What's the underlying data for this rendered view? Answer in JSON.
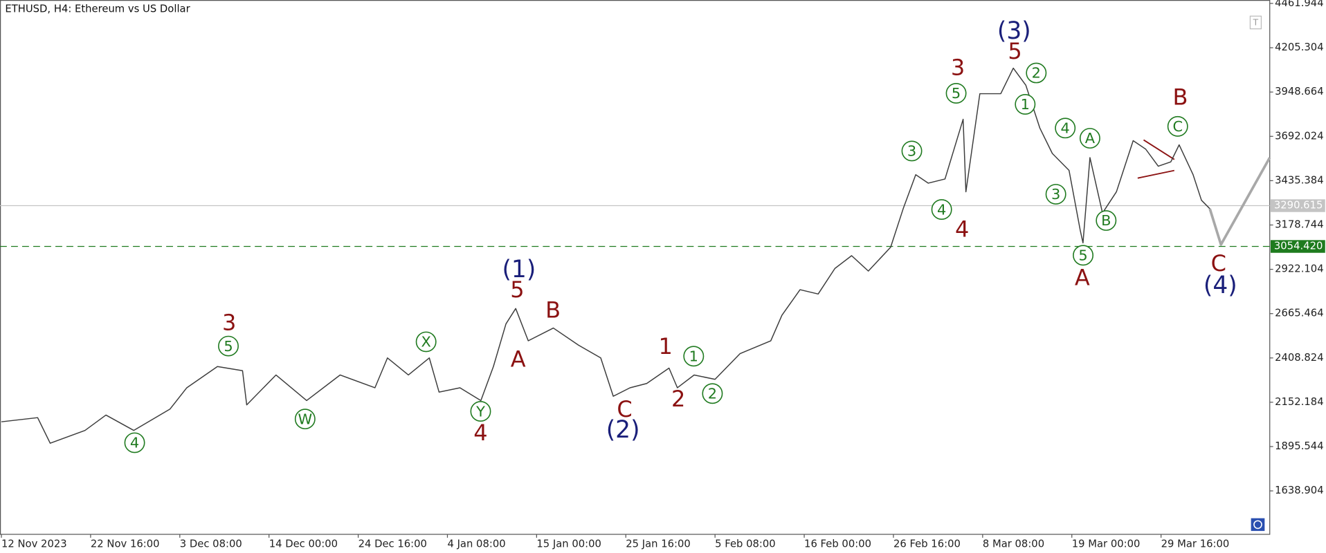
{
  "chart_data": {
    "type": "line",
    "title": "ETHUSD, H4:  Ethereum vs US Dollar",
    "x": [
      "12 Nov 00:00",
      "16 Nov 08:00",
      "17 Nov 20:00",
      "22 Nov 00:00",
      "24 Nov 12:00",
      "27 Nov 20:00",
      "2 Dec 04:00",
      "4 Dec 04:00",
      "7 Dec 20:00",
      "10 Dec 20:00",
      "11 Dec 08:00",
      "14 Dec 20:00",
      "18 Dec 12:00",
      "22 Dec 12:00",
      "26 Dec 16:00",
      "28 Dec 04:00",
      "30 Dec 16:00",
      "2 Jan 04:00",
      "3 Jan 08:00",
      "5 Jan 20:00",
      "8 Jan 08:00",
      "9 Jan 20:00",
      "11 Jan 08:00",
      "12 Jan 12:00",
      "14 Jan 00:00",
      "17 Jan 00:00",
      "20 Jan 00:00",
      "22 Jan 16:00",
      "24 Jan 04:00",
      "26 Jan 04:00",
      "28 Jan 04:00",
      "30 Jan 20:00",
      "31 Jan 20:00",
      "2 Feb 20:00",
      "5 Feb 08:00",
      "8 Feb 08:00",
      "12 Feb 00:00",
      "13 Feb 08:00",
      "15 Feb 12:00",
      "17 Feb 16:00",
      "19 Feb 16:00",
      "21 Feb 16:00",
      "23 Feb 16:00",
      "26 Feb 08:00",
      "27 Feb 20:00",
      "29 Feb 08:00",
      "1 Mar 20:00",
      "3 Mar 20:00",
      "6 Mar 00:00",
      "6 Mar 08:00",
      "8 Mar 00:00",
      "10 Mar 12:00",
      "12 Mar 00:00",
      "13 Mar 12:00",
      "15 Mar 04:00",
      "16 Mar 16:00",
      "18 Mar 16:00",
      "20 Mar 00:00",
      "20 Mar 08:00",
      "21 Mar 04:00",
      "22 Mar 16:00",
      "24 Mar 08:00",
      "26 Mar 08:00",
      "27 Mar 20:00",
      "29 Mar 08:00",
      "30 Mar 20:00",
      "31 Mar 20:00",
      "2 Apr 12:00",
      "3 Apr 12:00",
      "4 Apr 12:00"
    ],
    "series": [
      {
        "color": "#3c3c3c",
        "values": [
          2039,
          2063,
          1915,
          1989,
          2078,
          1989,
          2113,
          2236,
          2359,
          2335,
          2137,
          2310,
          2162,
          2310,
          2236,
          2409,
          2310,
          2409,
          2211,
          2236,
          2162,
          2359,
          2606,
          2695,
          2508,
          2582,
          2483,
          2409,
          2187,
          2236,
          2261,
          2350,
          2236,
          2310,
          2285,
          2434,
          2508,
          2656,
          2804,
          2779,
          2927,
          3001,
          2912,
          3050,
          3273,
          3470,
          3421,
          3445,
          3791,
          3371,
          3939,
          3939,
          4087,
          3988,
          3741,
          3593,
          3495,
          3149,
          3075,
          3569,
          3248,
          3371,
          3667,
          3618,
          3519,
          3544,
          3643,
          3470,
          3322,
          3273
        ]
      }
    ],
    "projection": {
      "color": "#a8a8a8",
      "x": [
        "4 Apr 12:00",
        "5 Apr 20:00",
        "11 Apr 16:00"
      ],
      "values": [
        3273,
        3065,
        3569
      ]
    },
    "xlim": [
      "11 Nov 20:00",
      "11 Apr 16:00"
    ],
    "xticks": [
      "12 Nov 2023",
      "22 Nov 16:00",
      "3 Dec 08:00",
      "14 Dec 00:00",
      "24 Dec 16:00",
      "4 Jan 08:00",
      "15 Jan 00:00",
      "25 Jan 16:00",
      "5 Feb 08:00",
      "16 Feb 00:00",
      "26 Feb 16:00",
      "8 Mar 08:00",
      "19 Mar 00:00",
      "29 Mar 16:00"
    ],
    "ylim": [
      1387.2,
      4481.7
    ],
    "yticks": [
      4461.944,
      4205.304,
      3948.664,
      3692.024,
      3435.384,
      3178.744,
      2922.104,
      2665.464,
      2408.824,
      2152.184,
      1895.544,
      1638.904
    ],
    "price_lines": [
      {
        "price": 3290.615,
        "color": "#c4c4c4",
        "dashed": false
      },
      {
        "price": {
          "value": 3054.42,
          "label": "3054.420"
        },
        "color": "#1e7b1e",
        "dashed": true
      }
    ],
    "styles": {
      "circle": "#1f7a1f",
      "minor": "#8b1111",
      "major": "#1a1f7a"
    },
    "annotations": [
      {
        "text": "4",
        "style": "circle"
      },
      {
        "text": "5",
        "style": "circle"
      },
      {
        "text": "W",
        "style": "circle"
      },
      {
        "text": "X",
        "style": "circle"
      },
      {
        "text": "Y",
        "style": "circle"
      },
      {
        "text": "1",
        "style": "circle"
      },
      {
        "text": "2",
        "style": "circle"
      },
      {
        "text": "3",
        "style": "circle"
      },
      {
        "text": "4",
        "style": "circle"
      },
      {
        "text": "5",
        "style": "circle"
      },
      {
        "text": "1",
        "style": "circle"
      },
      {
        "text": "2",
        "style": "circle"
      },
      {
        "text": "4",
        "style": "circle"
      },
      {
        "text": "3",
        "style": "circle"
      },
      {
        "text": "A",
        "style": "circle"
      },
      {
        "text": "5",
        "style": "circle"
      },
      {
        "text": "B",
        "style": "circle"
      },
      {
        "text": "C",
        "style": "circle"
      },
      {
        "text": "3",
        "style": "minor"
      },
      {
        "text": "4",
        "style": "minor"
      },
      {
        "text": "5",
        "style": "minor"
      },
      {
        "text": "A",
        "style": "minor"
      },
      {
        "text": "B",
        "style": "minor"
      },
      {
        "text": "C",
        "style": "minor"
      },
      {
        "text": "1",
        "style": "minor"
      },
      {
        "text": "2",
        "style": "minor"
      },
      {
        "text": "3",
        "style": "minor"
      },
      {
        "text": "4",
        "style": "minor"
      },
      {
        "text": "5",
        "style": "minor"
      },
      {
        "text": "A",
        "style": "minor"
      },
      {
        "text": "B",
        "style": "minor"
      },
      {
        "text": "C",
        "style": "minor"
      },
      {
        "text": "(1)",
        "style": "major"
      },
      {
        "text": "(2)",
        "style": "major"
      },
      {
        "text": "(3)",
        "style": "major"
      },
      {
        "text": "(4)",
        "style": "major"
      }
    ]
  }
}
